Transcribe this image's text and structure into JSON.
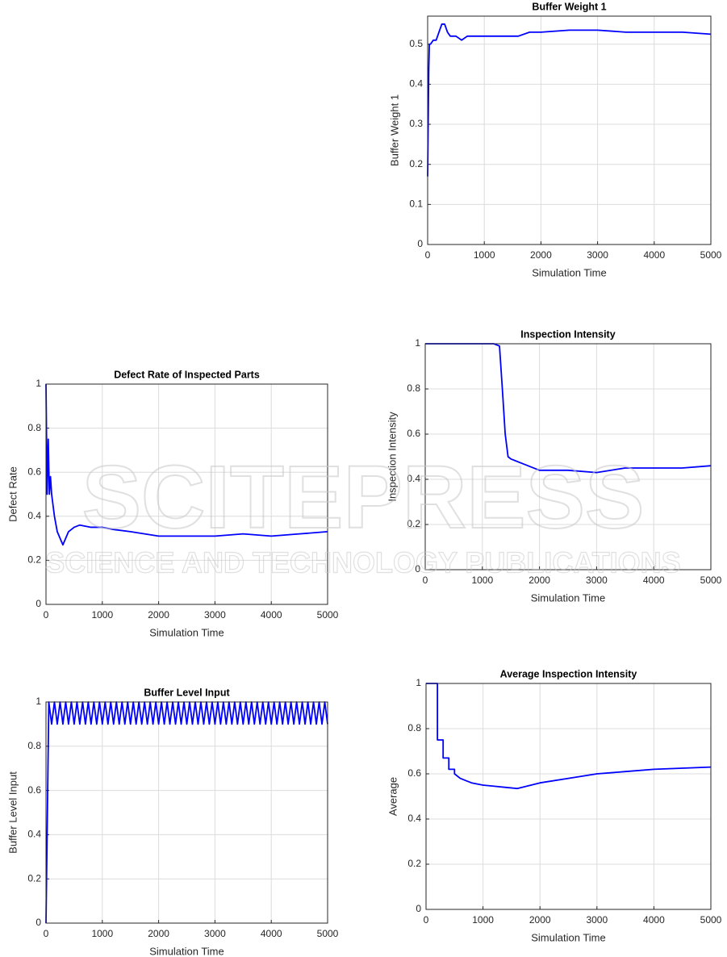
{
  "chart_data": [
    {
      "type": "line",
      "title": "Buffer Weight 1",
      "xlabel": "Simulation Time",
      "ylabel": "Buffer Weight 1",
      "grid": true,
      "xlim": [
        0,
        5000
      ],
      "xticks": [
        0,
        1000,
        2000,
        3000,
        4000,
        5000
      ],
      "ylim": [
        0,
        0.57
      ],
      "yticks": [
        0,
        0.1,
        0.2,
        0.3,
        0.4,
        0.5
      ],
      "x": [
        0,
        20,
        30,
        50,
        100,
        150,
        200,
        250,
        300,
        350,
        400,
        500,
        600,
        700,
        800,
        1000,
        1200,
        1400,
        1600,
        1800,
        2000,
        2500,
        3000,
        3500,
        4000,
        4500,
        5000
      ],
      "series": [
        {
          "color": "#0000ff",
          "values": [
            0.17,
            0.44,
            0.5,
            0.5,
            0.51,
            0.51,
            0.53,
            0.55,
            0.55,
            0.53,
            0.52,
            0.52,
            0.51,
            0.52,
            0.52,
            0.52,
            0.52,
            0.52,
            0.52,
            0.53,
            0.53,
            0.535,
            0.535,
            0.53,
            0.53,
            0.53,
            0.525
          ]
        }
      ]
    },
    {
      "type": "line",
      "title": "Defect Rate of Inspected Parts",
      "xlabel": "Simulation Time",
      "ylabel": "Defect Rate",
      "grid": true,
      "xlim": [
        0,
        5000
      ],
      "xticks": [
        0,
        1000,
        2000,
        3000,
        4000,
        5000
      ],
      "ylim": [
        0,
        1
      ],
      "yticks": [
        0,
        0.2,
        0.4,
        0.6,
        0.8,
        1
      ],
      "x": [
        0,
        20,
        40,
        60,
        80,
        100,
        150,
        200,
        250,
        300,
        400,
        500,
        600,
        800,
        1000,
        1200,
        1500,
        2000,
        2500,
        3000,
        3500,
        4000,
        4500,
        5000
      ],
      "series": [
        {
          "color": "#0000ff",
          "values": [
            1,
            0.5,
            0.75,
            0.5,
            0.58,
            0.5,
            0.4,
            0.33,
            0.3,
            0.27,
            0.33,
            0.35,
            0.36,
            0.35,
            0.35,
            0.34,
            0.33,
            0.31,
            0.31,
            0.31,
            0.32,
            0.31,
            0.32,
            0.33
          ]
        }
      ]
    },
    {
      "type": "line",
      "title": "Inspection Intensity",
      "xlabel": "Simulation Time",
      "ylabel": "Inspection Intensity",
      "grid": true,
      "xlim": [
        0,
        5000
      ],
      "xticks": [
        0,
        1000,
        2000,
        3000,
        4000,
        5000
      ],
      "ylim": [
        0,
        1
      ],
      "yticks": [
        0,
        0.2,
        0.4,
        0.6,
        0.8,
        1
      ],
      "x": [
        0,
        200,
        400,
        600,
        800,
        1000,
        1200,
        1300,
        1350,
        1400,
        1450,
        1500,
        1700,
        2000,
        2500,
        3000,
        3500,
        4000,
        4500,
        5000
      ],
      "series": [
        {
          "color": "#0000ff",
          "values": [
            1,
            1,
            1,
            1,
            1,
            1,
            1,
            0.99,
            0.8,
            0.6,
            0.5,
            0.49,
            0.47,
            0.44,
            0.44,
            0.43,
            0.45,
            0.45,
            0.45,
            0.46
          ]
        }
      ]
    },
    {
      "type": "line",
      "title": "Buffer Level Input",
      "xlabel": "Simulation Time",
      "ylabel": "Buffer Level Input",
      "grid": true,
      "xlim": [
        0,
        5000
      ],
      "xticks": [
        0,
        1000,
        2000,
        3000,
        4000,
        5000
      ],
      "ylim": [
        0,
        1
      ],
      "yticks": [
        0,
        0.2,
        0.4,
        0.6,
        0.8,
        1
      ],
      "x": [
        0,
        5,
        10,
        15,
        20,
        25,
        30,
        35,
        40,
        45,
        50,
        100,
        150,
        200,
        250,
        300,
        350,
        400,
        450,
        500,
        550,
        600,
        650,
        700,
        750,
        800,
        850,
        900,
        950,
        1000,
        1050,
        1100,
        1150,
        1200,
        1250,
        1300,
        1350,
        1400,
        1450,
        1500,
        1550,
        1600,
        1650,
        1700,
        1750,
        1800,
        1850,
        1900,
        1950,
        2000,
        2050,
        2100,
        2150,
        2200,
        2250,
        2300,
        2350,
        2400,
        2450,
        2500,
        2550,
        2600,
        2650,
        2700,
        2750,
        2800,
        2850,
        2900,
        2950,
        3000,
        3050,
        3100,
        3150,
        3200,
        3250,
        3300,
        3350,
        3400,
        3450,
        3500,
        3550,
        3600,
        3650,
        3700,
        3750,
        3800,
        3850,
        3900,
        3950,
        4000,
        4050,
        4100,
        4150,
        4200,
        4250,
        4300,
        4350,
        4400,
        4450,
        4500,
        4550,
        4600,
        4650,
        4700,
        4750,
        4800,
        4850,
        4900,
        4950,
        5000
      ],
      "series": [
        {
          "color": "#0000ff",
          "values": [
            0,
            0.1,
            0.2,
            0.3,
            0.4,
            0.5,
            0.6,
            0.7,
            0.8,
            0.9,
            1,
            0.9,
            1,
            0.9,
            1,
            0.9,
            1,
            0.9,
            1,
            0.9,
            1,
            0.9,
            1,
            0.9,
            1,
            0.9,
            1,
            0.9,
            1,
            0.9,
            1,
            0.9,
            1,
            0.9,
            1,
            0.9,
            1,
            0.9,
            1,
            0.9,
            1,
            0.9,
            1,
            0.9,
            1,
            0.9,
            1,
            0.9,
            1,
            0.9,
            1,
            0.9,
            1,
            0.9,
            1,
            0.9,
            1,
            0.9,
            1,
            0.9,
            1,
            0.9,
            1,
            0.9,
            1,
            0.9,
            1,
            0.9,
            1,
            0.9,
            1,
            0.9,
            1,
            0.9,
            1,
            0.9,
            1,
            0.9,
            1,
            0.9,
            1,
            0.9,
            1,
            0.9,
            1,
            0.9,
            1,
            0.9,
            1,
            0.9,
            1,
            0.9,
            1,
            0.9,
            1,
            0.9,
            1,
            0.9,
            1,
            0.9,
            1,
            0.9,
            1,
            0.9,
            1,
            0.9,
            1,
            0.9,
            1,
            0.9
          ]
        }
      ]
    },
    {
      "type": "line",
      "title": "Average Inspection Intensity",
      "xlabel": "Simulation Time",
      "ylabel": "Average",
      "grid": true,
      "xlim": [
        0,
        5000
      ],
      "xticks": [
        0,
        1000,
        2000,
        3000,
        4000,
        5000
      ],
      "ylim": [
        0,
        1
      ],
      "yticks": [
        0,
        0.2,
        0.4,
        0.6,
        0.8,
        1
      ],
      "x": [
        0,
        200,
        200,
        300,
        300,
        400,
        400,
        500,
        500,
        600,
        700,
        800,
        1000,
        1200,
        1400,
        1600,
        2000,
        2500,
        3000,
        3500,
        4000,
        4500,
        5000
      ],
      "series": [
        {
          "color": "#0000ff",
          "values": [
            1,
            1,
            0.75,
            0.75,
            0.67,
            0.67,
            0.62,
            0.62,
            0.6,
            0.58,
            0.57,
            0.56,
            0.55,
            0.545,
            0.54,
            0.535,
            0.56,
            0.58,
            0.6,
            0.61,
            0.62,
            0.625,
            0.63
          ]
        }
      ]
    }
  ],
  "watermark": {
    "title": "SCITEPRESS",
    "subtitle": "SCIENCE AND TECHNOLOGY PUBLICATIONS"
  }
}
